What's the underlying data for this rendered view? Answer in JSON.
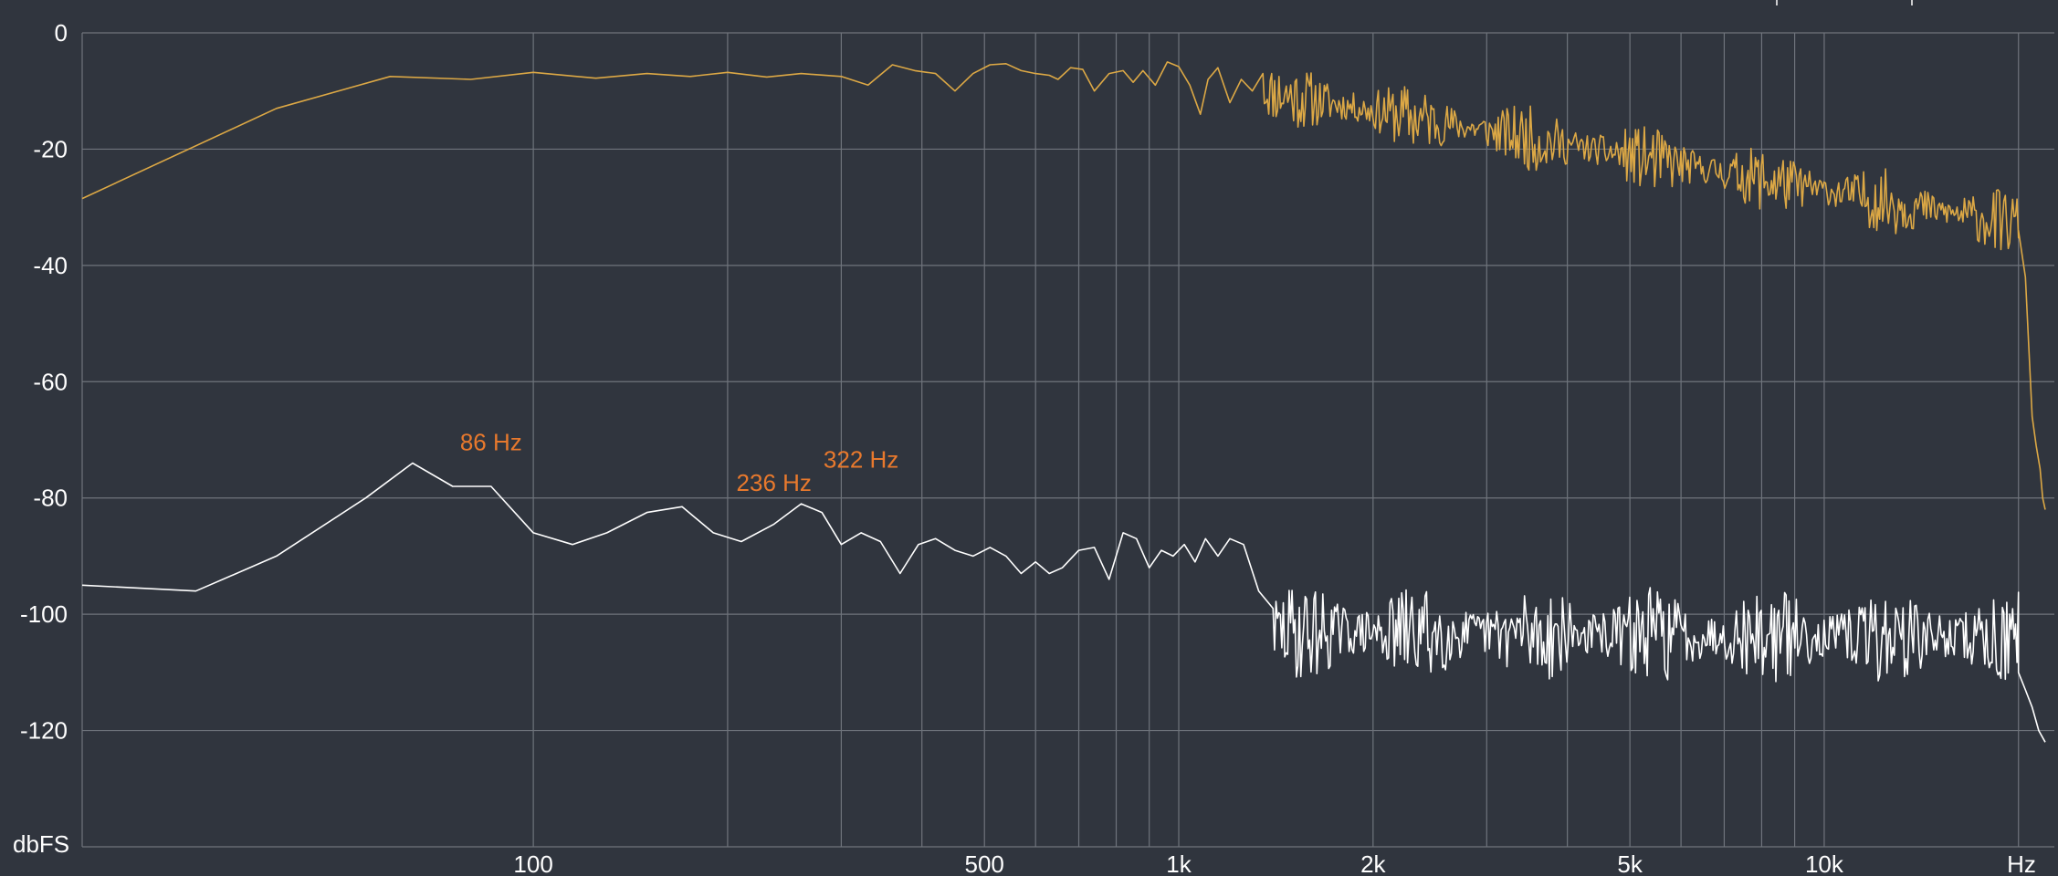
{
  "chart_data": {
    "type": "line",
    "x_scale": "log",
    "xlim": [
      20,
      22000
    ],
    "ylim": [
      -140,
      0
    ],
    "ylabel": "dbFS",
    "xlabel": "Hz",
    "grid": true,
    "y_ticks": [
      {
        "value": 0,
        "label": "0"
      },
      {
        "value": -20,
        "label": "-20"
      },
      {
        "value": -40,
        "label": "-40"
      },
      {
        "value": -60,
        "label": "-60"
      },
      {
        "value": -80,
        "label": "-80"
      },
      {
        "value": -100,
        "label": "-100"
      },
      {
        "value": -120,
        "label": "-120"
      }
    ],
    "x_ticks": [
      {
        "value": 100,
        "label": "100"
      },
      {
        "value": 500,
        "label": "500"
      },
      {
        "value": 1000,
        "label": "1k"
      },
      {
        "value": 2000,
        "label": "2k"
      },
      {
        "value": 5000,
        "label": "5k"
      },
      {
        "value": 10000,
        "label": "10k"
      }
    ],
    "x_minor_grid": [
      200,
      300,
      400,
      600,
      700,
      800,
      900,
      3000,
      4000,
      6000,
      7000,
      8000,
      9000,
      20000
    ],
    "annotations": [
      {
        "label": "86 Hz",
        "x": 86,
        "y": -74
      },
      {
        "label": "236 Hz",
        "x": 236,
        "y": -81
      },
      {
        "label": "322 Hz",
        "x": 322,
        "y": -77
      }
    ],
    "series": [
      {
        "color": "#dca845",
        "points": [
          [
            20,
            -28.5
          ],
          [
            40,
            -13
          ],
          [
            60,
            -7.5
          ],
          [
            80,
            -8
          ],
          [
            100,
            -6.8
          ],
          [
            125,
            -7.8
          ],
          [
            150,
            -7
          ],
          [
            175,
            -7.5
          ],
          [
            200,
            -6.8
          ],
          [
            230,
            -7.6
          ],
          [
            260,
            -7
          ],
          [
            300,
            -7.5
          ],
          [
            330,
            -9
          ],
          [
            360,
            -5.5
          ],
          [
            390,
            -6.5
          ],
          [
            420,
            -7
          ],
          [
            450,
            -10
          ],
          [
            480,
            -7
          ],
          [
            510,
            -5.5
          ],
          [
            540,
            -5.3
          ],
          [
            570,
            -6.5
          ],
          [
            600,
            -7
          ],
          [
            630,
            -7.3
          ],
          [
            650,
            -8
          ],
          [
            680,
            -6
          ],
          [
            710,
            -6.3
          ],
          [
            740,
            -10
          ],
          [
            780,
            -7
          ],
          [
            820,
            -6.5
          ],
          [
            850,
            -8.5
          ],
          [
            880,
            -6.5
          ],
          [
            920,
            -9
          ],
          [
            960,
            -5
          ],
          [
            1000,
            -5.8
          ],
          [
            1040,
            -9
          ],
          [
            1080,
            -14
          ],
          [
            1110,
            -8
          ],
          [
            1150,
            -6
          ],
          [
            1200,
            -12
          ],
          [
            1250,
            -8
          ],
          [
            1300,
            -10
          ],
          [
            1350,
            -7
          ]
        ],
        "noise": {
          "from": 1350,
          "to": 20000,
          "start_db": -10,
          "end_db": -33,
          "spread": 8,
          "seed": 11
        },
        "tail": [
          [
            20000,
            -34
          ],
          [
            20500,
            -42
          ],
          [
            21000,
            -66
          ],
          [
            21300,
            -71
          ],
          [
            21600,
            -75
          ],
          [
            21800,
            -80
          ],
          [
            22000,
            -82
          ]
        ]
      },
      {
        "color": "#ffffff",
        "points": [
          [
            20,
            -95
          ],
          [
            30,
            -96
          ],
          [
            40,
            -90
          ],
          [
            55,
            -80
          ],
          [
            65,
            -74
          ],
          [
            75,
            -78
          ],
          [
            86,
            -78
          ],
          [
            100,
            -86
          ],
          [
            115,
            -88
          ],
          [
            130,
            -86
          ],
          [
            150,
            -82.5
          ],
          [
            170,
            -81.5
          ],
          [
            190,
            -86
          ],
          [
            210,
            -87.5
          ],
          [
            236,
            -84.5
          ],
          [
            260,
            -81
          ],
          [
            280,
            -82.5
          ],
          [
            300,
            -88
          ],
          [
            322,
            -86
          ],
          [
            345,
            -87.5
          ],
          [
            370,
            -93
          ],
          [
            395,
            -88
          ],
          [
            420,
            -87
          ],
          [
            450,
            -89
          ],
          [
            480,
            -90
          ],
          [
            510,
            -88.5
          ],
          [
            540,
            -90
          ],
          [
            570,
            -93
          ],
          [
            600,
            -91
          ],
          [
            630,
            -93
          ],
          [
            660,
            -92
          ],
          [
            700,
            -89
          ],
          [
            740,
            -88.5
          ],
          [
            780,
            -94
          ],
          [
            820,
            -86
          ],
          [
            860,
            -87
          ],
          [
            900,
            -92
          ],
          [
            940,
            -89
          ],
          [
            980,
            -90
          ],
          [
            1020,
            -88
          ],
          [
            1060,
            -91
          ],
          [
            1100,
            -87
          ],
          [
            1150,
            -90
          ],
          [
            1200,
            -87
          ],
          [
            1260,
            -88
          ],
          [
            1330,
            -96
          ],
          [
            1400,
            -99
          ]
        ],
        "noise": {
          "from": 1400,
          "to": 20000,
          "start_db": -103,
          "end_db": -104,
          "spread": 12,
          "seed": 29
        },
        "tail": [
          [
            20000,
            -110
          ],
          [
            20500,
            -113
          ],
          [
            21000,
            -116
          ],
          [
            21500,
            -120
          ],
          [
            22000,
            -122
          ]
        ]
      }
    ]
  }
}
